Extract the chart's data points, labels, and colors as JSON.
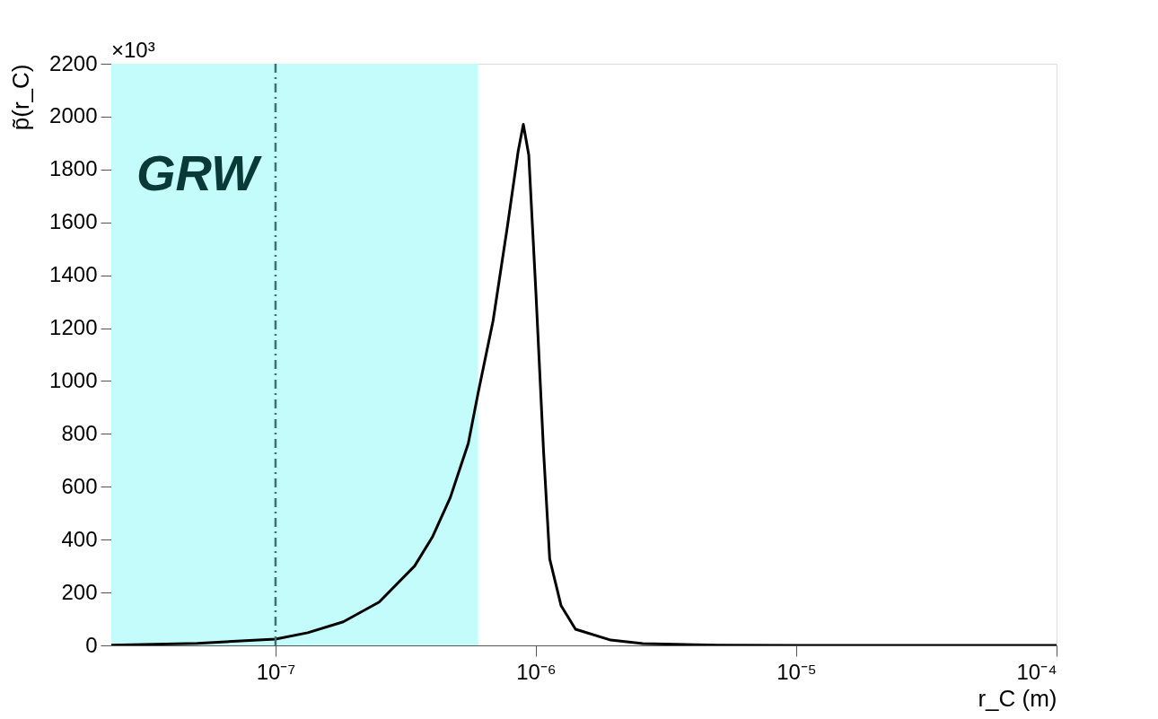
{
  "chart_data": {
    "type": "line",
    "xlabel": "r_C (m)",
    "ylabel": "p̃(r_C)",
    "annotations": [
      "×10³"
    ],
    "log": "x",
    "grid": false,
    "marker": "none",
    "line_style": "solid",
    "xlim": [
      2.34e-08,
      0.0001
    ],
    "ylim": [
      0,
      2200
    ],
    "xticks": [
      {
        "value": 1e-07,
        "label": "10⁻⁷"
      },
      {
        "value": 1e-06,
        "label": "10⁻⁶"
      },
      {
        "value": 1e-05,
        "label": "10⁻⁵"
      },
      {
        "value": 0.0001,
        "label": "10⁻⁴"
      }
    ],
    "yticks": [
      0,
      200,
      400,
      600,
      800,
      1000,
      1200,
      1400,
      1600,
      1800,
      2000,
      2200
    ],
    "bands": [
      {
        "axis": "x",
        "from": 2.34e-08,
        "to": 6e-07,
        "label": "GRW",
        "color": "#c4fcfc"
      }
    ],
    "ref_lines": [
      {
        "axis": "x",
        "value": 1e-07,
        "color": "#3d7272",
        "line_style": "dashed"
      }
    ],
    "series": [
      {
        "color": "#000000",
        "x": [
          2.34e-08,
          5e-08,
          1e-07,
          1.33e-07,
          1.82e-07,
          2.5e-07,
          3.42e-07,
          4e-07,
          4.69e-07,
          5.5e-07,
          6e-07,
          6.85e-07,
          7.77e-07,
          8.55e-07,
          8.95e-07,
          9.39e-07,
          1e-06,
          1.07e-06,
          1.13e-06,
          1.25e-06,
          1.42e-06,
          1.94e-06,
          2.58e-06,
          5e-06,
          1e-05,
          0.0001
        ],
        "values": [
          1,
          8,
          24,
          48,
          89,
          164,
          300,
          409,
          559,
          764,
          955,
          1228,
          1583,
          1869,
          1971,
          1855,
          1337,
          737,
          327,
          150,
          61,
          20,
          7,
          1,
          0,
          0
        ]
      }
    ]
  }
}
